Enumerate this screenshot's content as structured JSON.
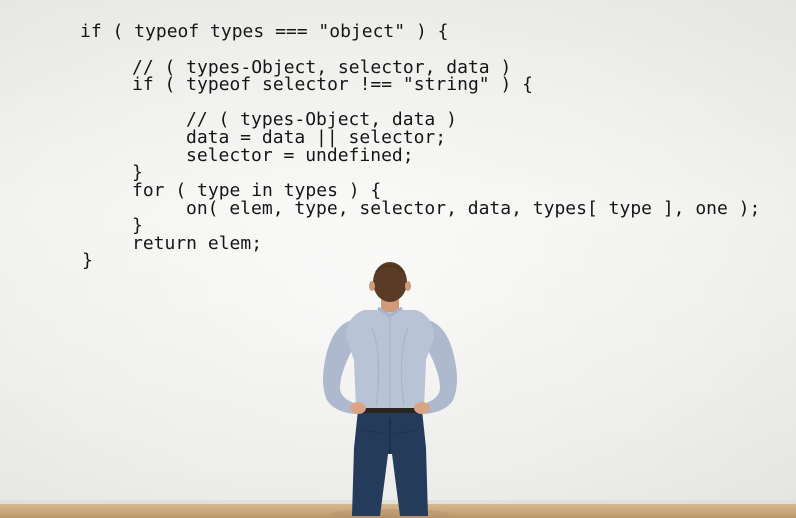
{
  "image": {
    "code_lines": [
      "if ( typeof types === \"object\" ) {",
      "// ( types-Object, selector, data )",
      "if ( typeof selector !== \"string\" ) {",
      "// ( types-Object, data )",
      "data = data || selector;",
      "selector = undefined;",
      "}",
      "for ( type in types ) {",
      "on( elem, type, selector, data, types[ type ], one );",
      "}",
      "return elem;",
      "}"
    ],
    "colors": {
      "wall": "#f4f4f2",
      "code_text": "#161616",
      "shirt": "#b9c3d6",
      "jeans": "#243b5c",
      "hair": "#5a3b26",
      "skin": "#d9a585",
      "floor": "#c9a57a"
    }
  }
}
